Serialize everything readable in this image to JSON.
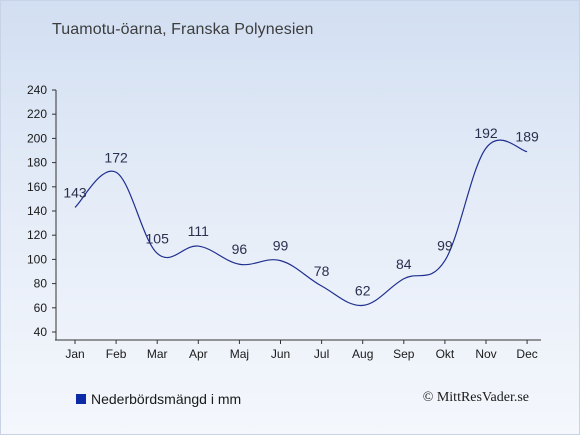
{
  "title": "Tuamotu-öarna, Franska Polynesien",
  "legend_label": "Nederbördsmängd i mm",
  "credit": "© MittResVader.se",
  "colors": {
    "line": "#1f2f8f",
    "legend": "#0c2aa6",
    "axis": "#333333",
    "label": "#2b2f4e"
  },
  "chart_data": {
    "type": "line",
    "title": "Tuamotu-öarna, Franska Polynesien",
    "xlabel": "",
    "ylabel": "",
    "categories": [
      "Jan",
      "Feb",
      "Mar",
      "Apr",
      "Maj",
      "Jun",
      "Jul",
      "Aug",
      "Sep",
      "Okt",
      "Nov",
      "Dec"
    ],
    "series": [
      {
        "name": "Nederbördsmängd i mm",
        "values": [
          143,
          172,
          105,
          111,
          96,
          99,
          78,
          62,
          84,
          99,
          192,
          189
        ]
      }
    ],
    "ylim": [
      40,
      240
    ],
    "yticks": [
      40,
      60,
      80,
      100,
      120,
      140,
      160,
      180,
      200,
      220,
      240
    ],
    "grid": false,
    "legend": "bottom-left"
  }
}
